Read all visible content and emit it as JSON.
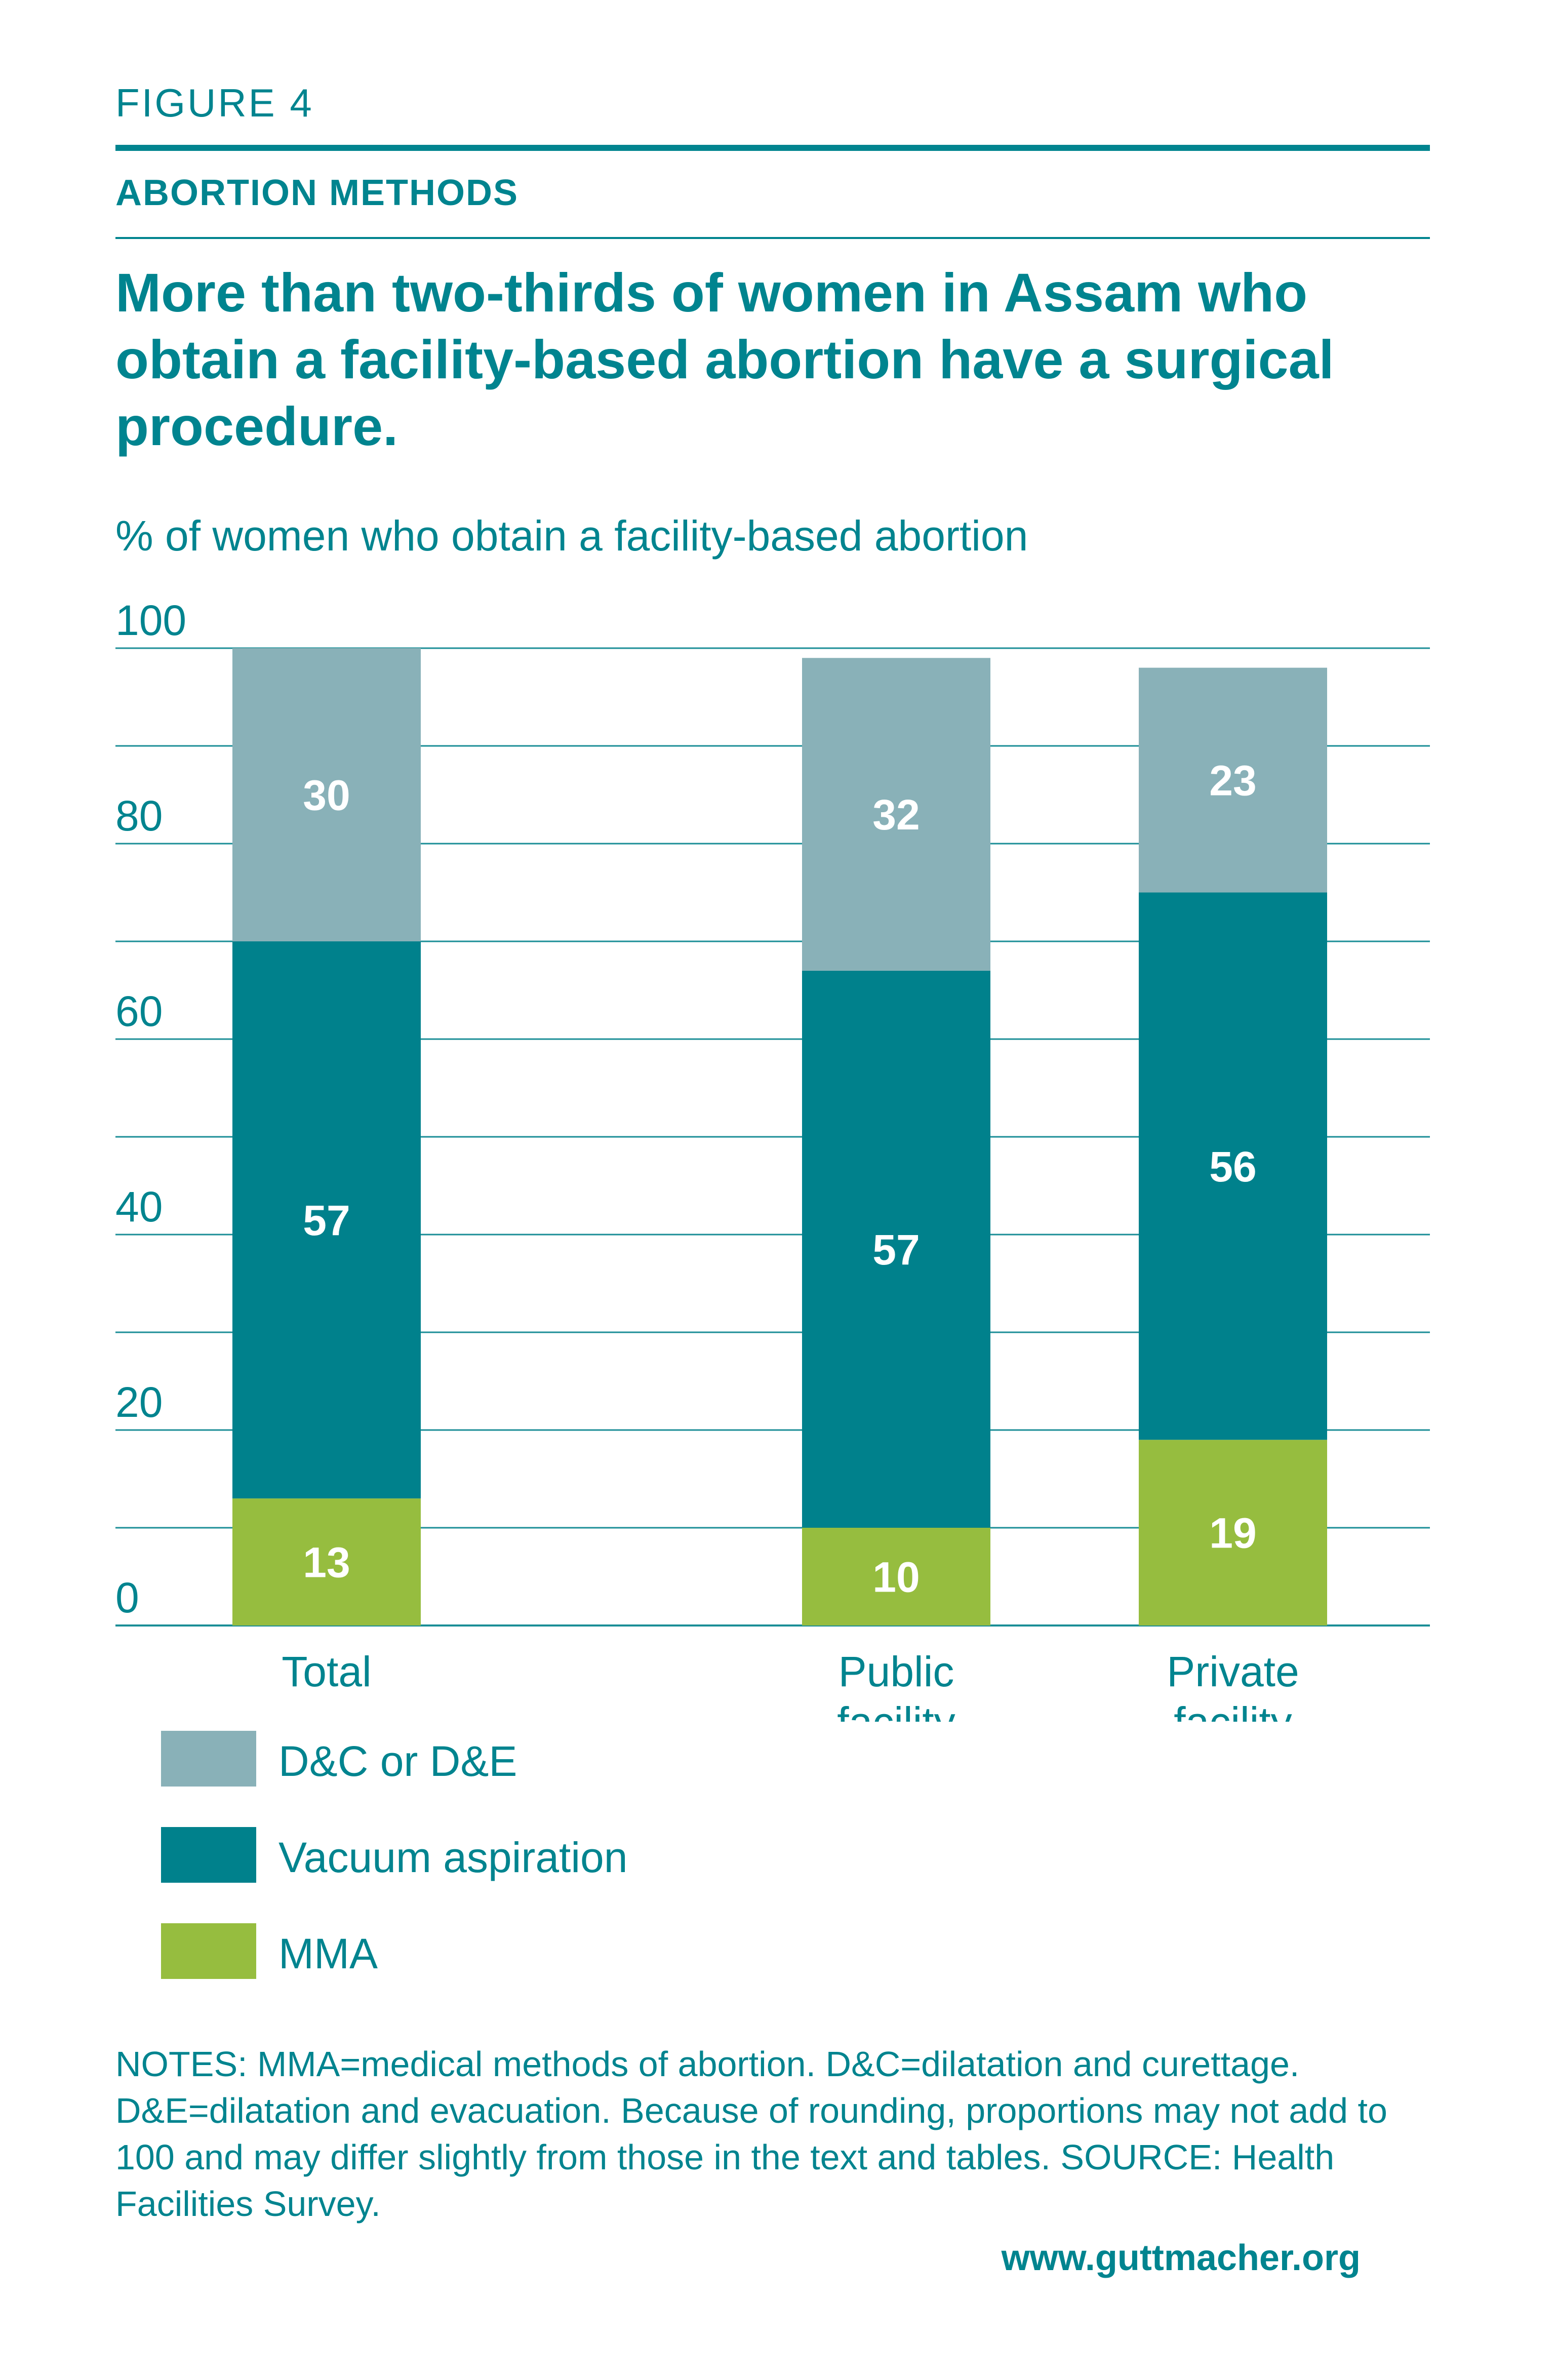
{
  "header": {
    "figure_label": "FIGURE 4",
    "section_title": "ABORTION METHODS",
    "headline": "More than two-thirds of women in Assam who obtain a facility-based abortion have a surgical procedure."
  },
  "chart_data": {
    "type": "bar",
    "stacked": true,
    "ylabel": "% of women who obtain a facility-based abortion",
    "ylim": [
      0,
      100
    ],
    "yticks": [
      0,
      20,
      40,
      60,
      80,
      100
    ],
    "grid": true,
    "categories": [
      "Total",
      "Public facility",
      "Private facility"
    ],
    "category_lines": [
      [
        "Total"
      ],
      [
        "Public",
        "facility"
      ],
      [
        "Private",
        "facility"
      ]
    ],
    "series": [
      {
        "name": "MMA",
        "color": "#96bd3f",
        "values": [
          13,
          10,
          19
        ]
      },
      {
        "name": "Vacuum aspiration",
        "color": "#00818c",
        "values": [
          57,
          57,
          56
        ]
      },
      {
        "name": "D&C or D&E",
        "color": "#89b1b8",
        "values": [
          30,
          32,
          23
        ]
      }
    ],
    "legend_order": [
      "D&C or D&E",
      "Vacuum aspiration",
      "MMA"
    ],
    "legend_position": "bottom-left"
  },
  "footer": {
    "notes": "NOTES: MMA=medical methods of abortion. D&C=dilatation and curettage. D&E=dilatation and evacuation. Because of rounding, proportions may not add to 100 and may differ slightly from those in the text and tables. SOURCE: Health Facilities Survey.",
    "website": "www.guttmacher.org"
  }
}
